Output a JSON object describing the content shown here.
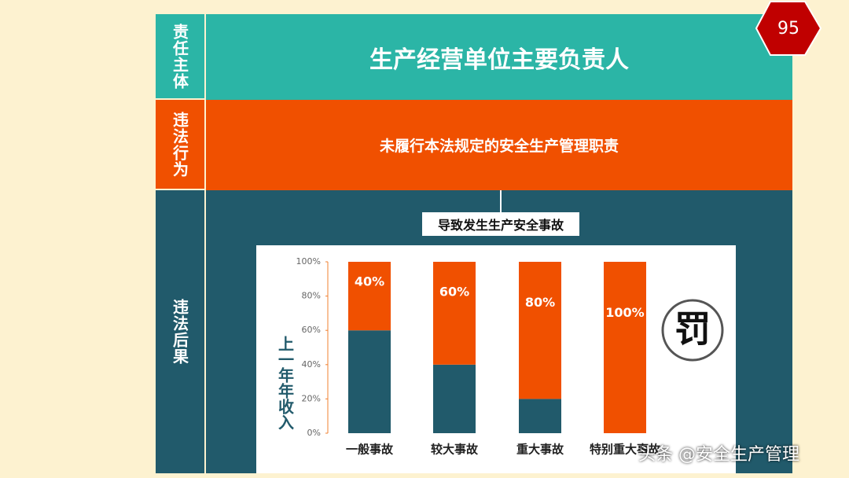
{
  "slide": {
    "page_number": "95",
    "rows": [
      {
        "label": "责任主体",
        "content": "生产经营单位主要负责人"
      },
      {
        "label": "违法行为",
        "content": "未履行本法规定的安全生产管理职责"
      },
      {
        "label": "违法后果",
        "content": "导致发生生产安全事故"
      }
    ],
    "icon_text": "罚",
    "watermark": "头条 @安全生产管理"
  },
  "chart_data": {
    "type": "stacked_bar",
    "y_label": "上一年年收入",
    "categories": [
      "一般事故",
      "较大事故",
      "重大事故",
      "特别重大事故"
    ],
    "series": [
      {
        "color": "#215a6b",
        "values": [
          60,
          40,
          20,
          0
        ]
      },
      {
        "color": "#f05000",
        "values": [
          40,
          60,
          80,
          100
        ],
        "value_labels": [
          "40%",
          "60%",
          "80%",
          "100%"
        ]
      }
    ],
    "ylim": [
      0,
      100
    ],
    "yticks": [
      {
        "value": 0,
        "label": "0%"
      },
      {
        "value": 20,
        "label": "20%"
      },
      {
        "value": 40,
        "label": "40%"
      },
      {
        "value": 60,
        "label": "60%"
      },
      {
        "value": 80,
        "label": "80%"
      },
      {
        "value": 100,
        "label": "100%"
      }
    ]
  }
}
